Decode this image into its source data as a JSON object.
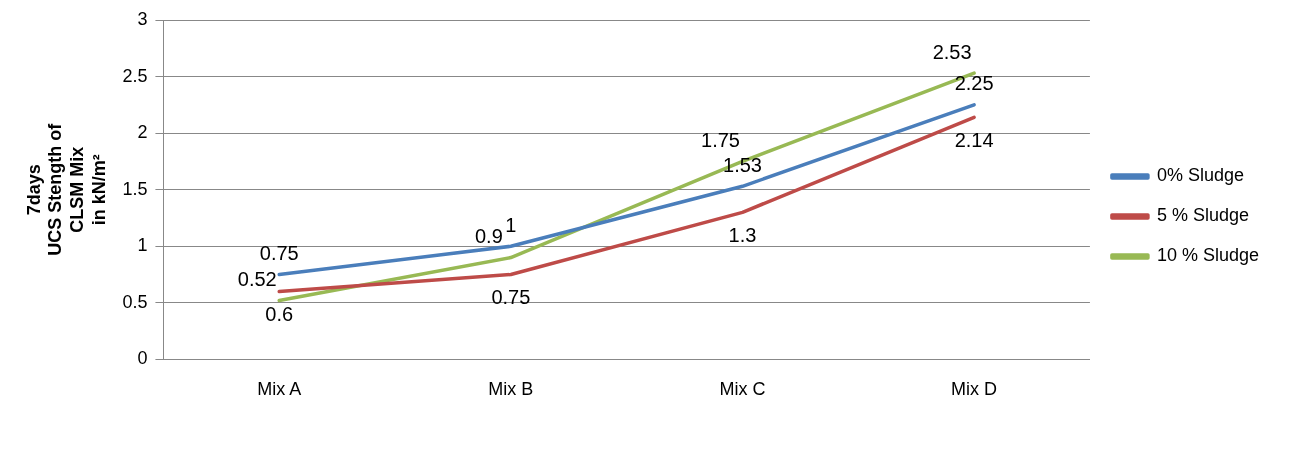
{
  "chart_data": {
    "type": "line",
    "ylabel": "7days\nUCS Stength of\nCLSM Mix\nin kN/m²",
    "categories": [
      "Mix A",
      "Mix B",
      "Mix C",
      "Mix D"
    ],
    "series": [
      {
        "name": "0% Sludge",
        "color": "#4a7ebb",
        "values": [
          0.75,
          1,
          1.53,
          2.25
        ]
      },
      {
        "name": "5 % Sludge",
        "color": "#be4b48",
        "values": [
          0.6,
          0.75,
          1.3,
          2.14
        ]
      },
      {
        "name": "10 % Sludge",
        "color": "#98b954",
        "values": [
          0.52,
          0.9,
          1.75,
          2.53
        ]
      }
    ],
    "ylim": [
      0,
      3
    ],
    "yticks": [
      0,
      0.5,
      1,
      1.5,
      2,
      2.5,
      3
    ],
    "grid": "y",
    "legend": "right",
    "marker": "none",
    "line_style": "solid",
    "data_labels": true
  }
}
